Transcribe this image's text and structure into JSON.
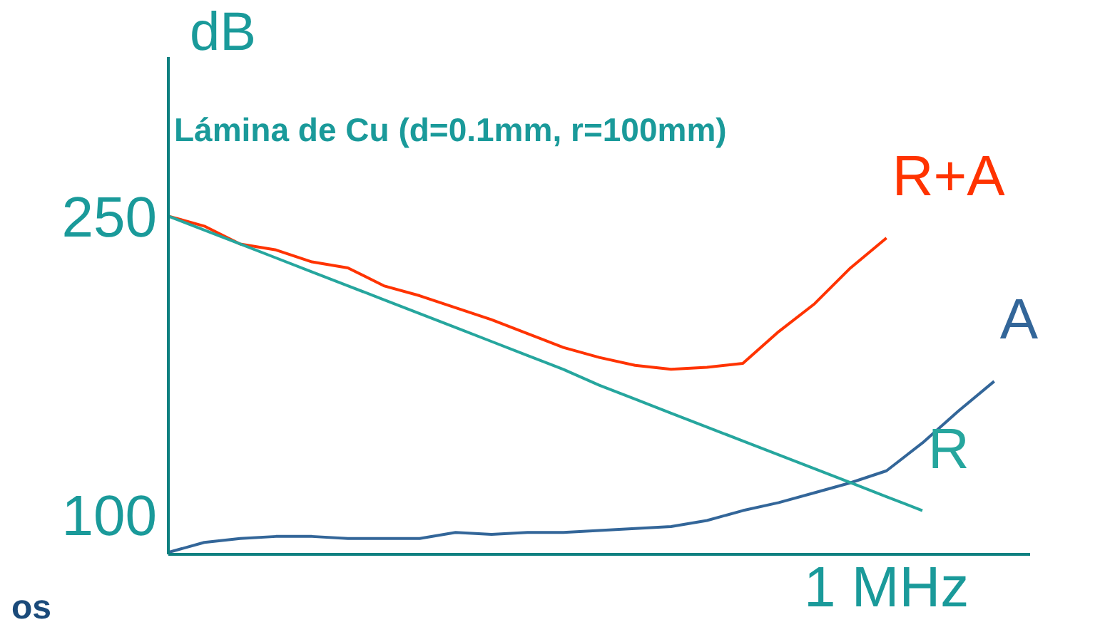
{
  "chart_data": {
    "type": "line",
    "title": "Lámina de Cu (d=0.1mm, r=100mm)",
    "ylabel": "dB",
    "annotations": [
      "os"
    ],
    "categories": [
      null,
      null,
      null,
      null,
      null,
      null,
      null,
      null,
      null,
      null,
      null,
      null,
      null,
      null,
      null,
      null,
      null,
      null,
      null,
      null,
      "1 MHz",
      null,
      null,
      null,
      null
    ],
    "ylim": [
      80,
      330
    ],
    "yticks": [
      250,
      100
    ],
    "grid": false,
    "legend": false,
    "marker": "none",
    "line_style": "solid",
    "series": [
      {
        "name": "R+A",
        "color": "#ff3300",
        "values": [
          250,
          245,
          236,
          233,
          227,
          224,
          215,
          210,
          204,
          198,
          191,
          184,
          179,
          175,
          173,
          174,
          176,
          192,
          206,
          224,
          239,
          null,
          null,
          null,
          null
        ]
      },
      {
        "name": "A",
        "color": "#336699",
        "values": [
          81,
          86,
          88,
          89,
          89,
          88,
          88,
          88,
          91,
          90,
          91,
          91,
          92,
          93,
          94,
          97,
          102,
          106,
          111,
          116,
          122,
          136,
          152,
          167,
          null
        ]
      },
      {
        "name": "R",
        "color": "#26a69e",
        "values": [
          250,
          243,
          236,
          229,
          222,
          215,
          208,
          201,
          194,
          187,
          180,
          173,
          165,
          158,
          151,
          144,
          137,
          130,
          123,
          116,
          109,
          102,
          null,
          null,
          null
        ]
      }
    ]
  }
}
